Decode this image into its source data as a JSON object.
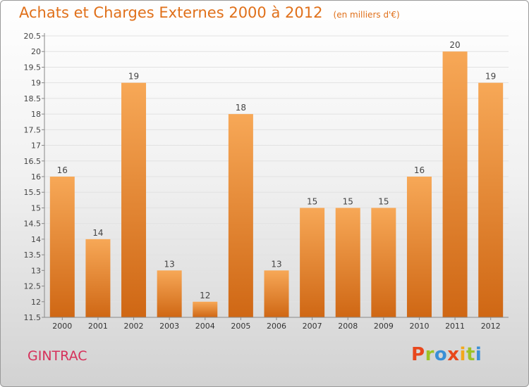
{
  "title": "Achats et Charges Externes 2000 à 2012",
  "subtitle": "(en milliers d'€)",
  "commune": "GINTRAC",
  "logo": {
    "letters": [
      "P",
      "r",
      "o",
      "x",
      "i",
      "t",
      "i"
    ],
    "colors": [
      "#e8471c",
      "#9dc226",
      "#3a8fd6",
      "#e8471c",
      "#f2a81c",
      "#9dc226",
      "#3a8fd6"
    ]
  },
  "colors": {
    "bar_top": "#f7a857",
    "bar_bottom": "#cf6714",
    "title": "#e0701a",
    "commune": "#d6305a"
  },
  "chart_data": {
    "type": "bar",
    "categories": [
      "2000",
      "2001",
      "2002",
      "2003",
      "2004",
      "2005",
      "2006",
      "2007",
      "2008",
      "2009",
      "2010",
      "2011",
      "2012"
    ],
    "values": [
      16,
      14,
      19,
      13,
      12,
      18,
      13,
      15,
      15,
      15,
      16,
      20,
      19
    ],
    "data_labels": [
      "16",
      "14",
      "19",
      "13",
      "12",
      "18",
      "13",
      "15",
      "15",
      "15",
      "16",
      "20",
      "19"
    ],
    "ylim": [
      11.5,
      20.5
    ],
    "yticks": [
      11.5,
      12,
      12.5,
      13,
      13.5,
      14,
      14.5,
      15,
      15.5,
      16,
      16.5,
      17,
      17.5,
      18,
      18.5,
      19,
      19.5,
      20,
      20.5
    ],
    "ytick_labels": [
      "11.5",
      "12",
      "12.5",
      "13",
      "13.5",
      "14",
      "14.5",
      "15",
      "15.5",
      "16",
      "16.5",
      "17",
      "17.5",
      "18",
      "18.5",
      "19",
      "19.5",
      "20",
      "20.5"
    ],
    "grid": true,
    "legend": "none"
  }
}
